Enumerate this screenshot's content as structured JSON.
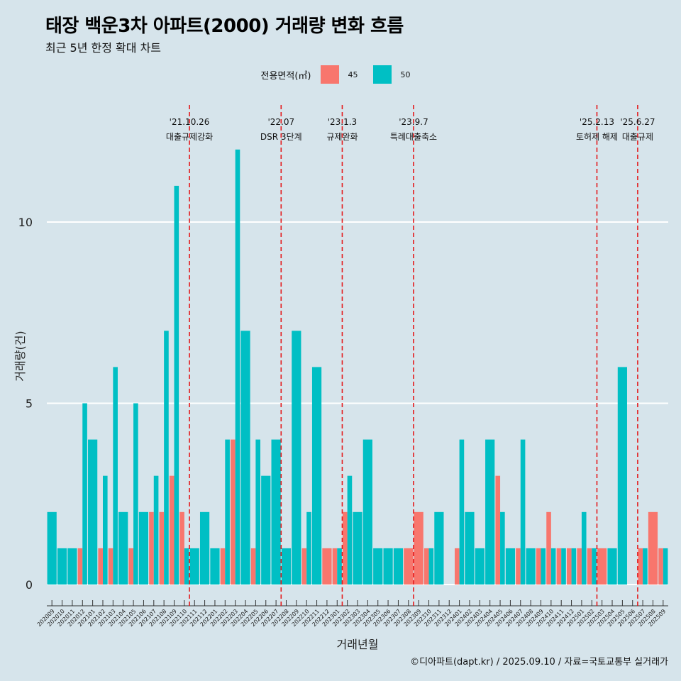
{
  "title": "태장 백운3차 아파트(2000) 거래량 변화 흐름",
  "subtitle": "최근 5년 한정 확대 차트",
  "footer": "©디아파트(dapt.kr) / 2025.09.10 / 자료=국토교통부 실거래가",
  "colors": {
    "s45": "#f8766d",
    "s50": "#00bfc4",
    "background": "#d6e4eb",
    "event_line": "#e41a1c"
  },
  "legend": {
    "title": "전용면적(㎡)",
    "items": [
      "45",
      "50"
    ]
  },
  "chart_data": {
    "type": "bar",
    "xlabel": "거래년월",
    "ylabel": "거래량(건)",
    "ylim": [
      0,
      12
    ],
    "yticks": [
      0,
      5,
      10
    ],
    "grid": true,
    "legend_position": "top",
    "categories": [
      "202009",
      "202010",
      "202011",
      "202012",
      "202101",
      "202102",
      "202103",
      "202104",
      "202105",
      "202106",
      "202107",
      "202108",
      "202109",
      "202110",
      "202111",
      "202112",
      "202201",
      "202202",
      "202203",
      "202204",
      "202205",
      "202206",
      "202207",
      "202208",
      "202209",
      "202210",
      "202211",
      "202212",
      "202301",
      "202302",
      "202303",
      "202304",
      "202305",
      "202306",
      "202307",
      "202308",
      "202309",
      "202310",
      "202311",
      "202312",
      "202401",
      "202402",
      "202403",
      "202404",
      "202405",
      "202406",
      "202407",
      "202408",
      "202409",
      "202410",
      "202411",
      "202412",
      "202501",
      "202502",
      "202503",
      "202504",
      "202505",
      "202506",
      "202507",
      "202508",
      "202509"
    ],
    "series": [
      {
        "name": "45",
        "values": [
          0,
          0,
          0,
          1,
          0,
          1,
          1,
          0,
          1,
          0,
          2,
          2,
          3,
          2,
          0,
          0,
          0,
          1,
          4,
          0,
          1,
          0,
          0,
          0,
          0,
          1,
          0,
          1,
          1,
          2,
          0,
          0,
          0,
          0,
          0,
          1,
          2,
          1,
          0,
          0,
          1,
          0,
          0,
          0,
          3,
          0,
          1,
          0,
          1,
          2,
          1,
          1,
          1,
          1,
          1,
          0,
          0,
          0,
          1,
          2,
          1
        ]
      },
      {
        "name": "50",
        "values": [
          2,
          1,
          1,
          5,
          4,
          3,
          6,
          2,
          5,
          2,
          3,
          7,
          11,
          1,
          1,
          2,
          1,
          4,
          12,
          7,
          4,
          3,
          4,
          1,
          7,
          2,
          6,
          0,
          1,
          3,
          2,
          4,
          1,
          1,
          1,
          0,
          0,
          1,
          2,
          0,
          4,
          2,
          1,
          4,
          2,
          1,
          4,
          1,
          1,
          1,
          1,
          1,
          2,
          1,
          0,
          1,
          6,
          0,
          1,
          0,
          1
        ]
      }
    ],
    "events": [
      {
        "category": "202110",
        "date": "'21.10.26",
        "label": "대출규제강화"
      },
      {
        "category": "202207",
        "date": "'22.07",
        "label": "DSR 3단계"
      },
      {
        "category": "202301",
        "date": "'23.1.3",
        "label": "규제완화"
      },
      {
        "category": "202308",
        "date": "'23.9.7",
        "label": "특례대출축소"
      },
      {
        "category": "202502",
        "date": "'25.2.13",
        "label": "토허제 해제"
      },
      {
        "category": "202506",
        "date": "'25.6.27",
        "label": "대출규제"
      }
    ]
  }
}
